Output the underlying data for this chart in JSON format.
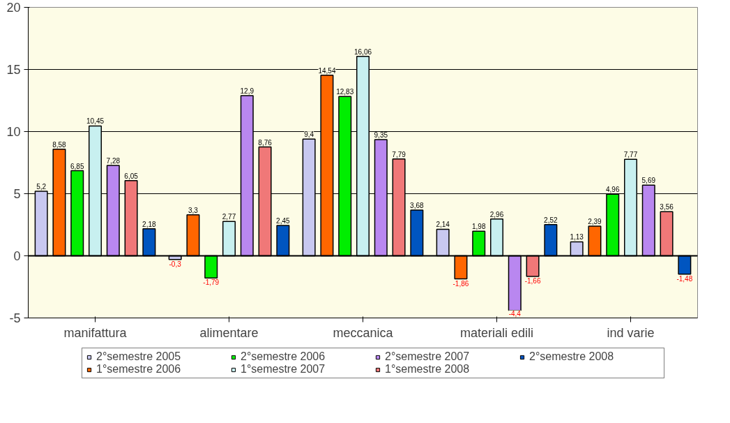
{
  "chart_data": {
    "type": "bar",
    "categories": [
      "manifattura",
      "alimentare",
      "meccanica",
      "materiali edili",
      "ind varie"
    ],
    "series": [
      {
        "name": "2°semestre 2005",
        "color": "#c8c8f0",
        "values": [
          5.2,
          -0.3,
          9.4,
          2.14,
          1.13
        ],
        "value_labels": [
          "5,2",
          "-0,3",
          "9,4",
          "2,14",
          "1,13"
        ]
      },
      {
        "name": "1°semestre 2006",
        "color": "#ff6600",
        "values": [
          8.58,
          3.3,
          14.54,
          -1.86,
          2.39
        ],
        "value_labels": [
          "8,58",
          "3,3",
          "14,54",
          "-1,86",
          "2,39"
        ]
      },
      {
        "name": "2°semestre 2006",
        "color": "#00ee00",
        "values": [
          6.85,
          -1.79,
          12.83,
          1.98,
          4.96
        ],
        "value_labels": [
          "6,85",
          "-1,79",
          "12,83",
          "1,98",
          "4,96"
        ]
      },
      {
        "name": "1°semestre 2007",
        "color": "#c8f0f0",
        "values": [
          10.45,
          2.77,
          16.06,
          2.96,
          7.77
        ],
        "value_labels": [
          "10,45",
          "2,77",
          "16,06",
          "2,96",
          "7,77"
        ]
      },
      {
        "name": "2°semestre 2007",
        "color": "#b987f0",
        "values": [
          7.28,
          12.9,
          9.35,
          -4.4,
          5.69
        ],
        "value_labels": [
          "7,28",
          "12,9",
          "9,35",
          "-4,4",
          "5,69"
        ]
      },
      {
        "name": "1°semestre 2008",
        "color": "#f07878",
        "values": [
          6.05,
          8.76,
          7.79,
          -1.66,
          3.56
        ],
        "value_labels": [
          "6,05",
          "8,76",
          "7,79",
          "-1,66",
          "3,56"
        ]
      },
      {
        "name": "2°semestre 2008",
        "color": "#0055c0",
        "values": [
          2.18,
          2.45,
          3.68,
          2.52,
          -1.48
        ],
        "value_labels": [
          "2,18",
          "2,45",
          "3,68",
          "2,52",
          "-1,48"
        ]
      }
    ],
    "ylim": [
      -5,
      20
    ],
    "yticks": [
      -5,
      0,
      5,
      10,
      15,
      20
    ],
    "grid": "y",
    "legend": "bottom"
  }
}
